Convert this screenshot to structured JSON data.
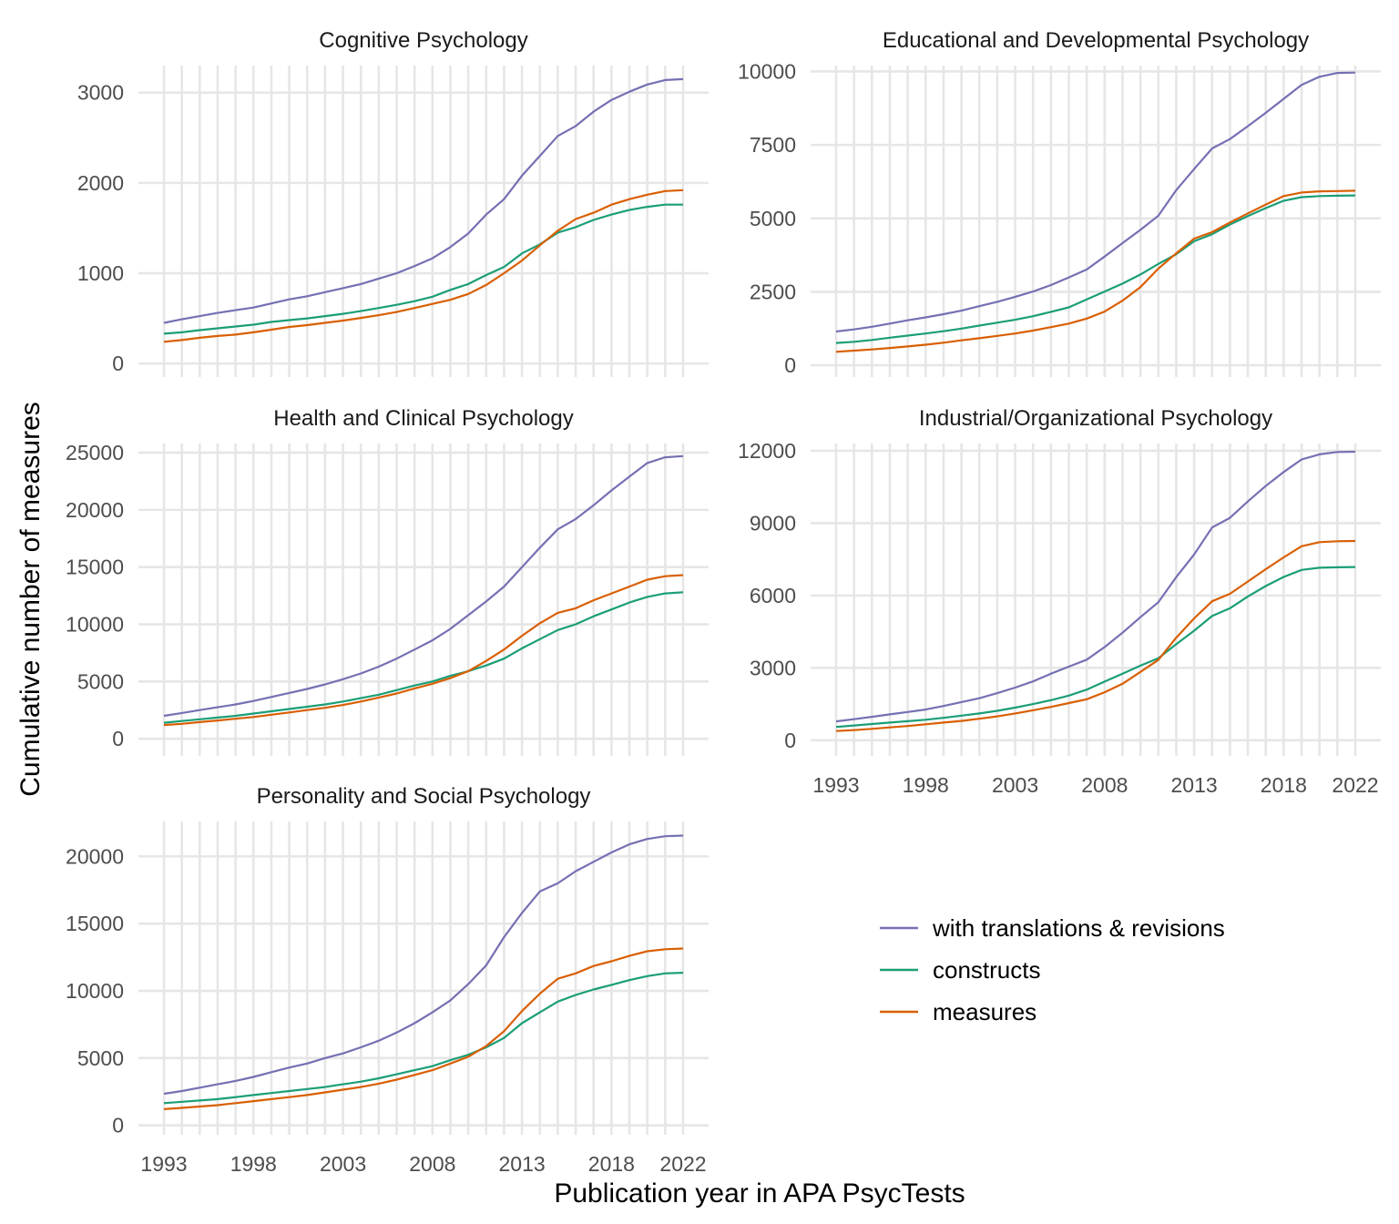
{
  "chart_data": {
    "type": "line",
    "xlabel": "Publication year in APA PsycTests",
    "ylabel": "Cumulative number of measures",
    "x_ticks": [
      1993,
      1998,
      2003,
      2008,
      2013,
      2018,
      2022
    ],
    "x": [
      1993,
      1994,
      1995,
      1996,
      1997,
      1998,
      1999,
      2000,
      2001,
      2002,
      2003,
      2004,
      2005,
      2006,
      2007,
      2008,
      2009,
      2010,
      2011,
      2012,
      2013,
      2014,
      2015,
      2016,
      2017,
      2018,
      2019,
      2020,
      2021,
      2022
    ],
    "xlim": [
      1993,
      2022
    ],
    "legend": {
      "placement": "bottom-right (empty facet slot)",
      "entries": [
        {
          "label": "with translations & revisions",
          "color": "#7570b3"
        },
        {
          "label": "constructs",
          "color": "#1b9e77"
        },
        {
          "label": "measures",
          "color": "#d95f02"
        }
      ]
    },
    "grid": true,
    "panels": [
      {
        "title": "Cognitive Psychology",
        "ylim": [
          -150,
          3300
        ],
        "y_ticks": [
          0,
          1000,
          2000,
          3000
        ],
        "show_x_labels": false,
        "series": [
          {
            "name": "with translations & revisions",
            "color": "#7570b3",
            "values": [
              450,
              490,
              525,
              560,
              590,
              620,
              665,
              710,
              745,
              790,
              835,
              880,
              940,
              1000,
              1080,
              1165,
              1290,
              1440,
              1650,
              1820,
              2080,
              2300,
              2520,
              2630,
              2790,
              2920,
              3010,
              3090,
              3140,
              3150
            ]
          },
          {
            "name": "constructs",
            "color": "#1b9e77",
            "values": [
              330,
              345,
              370,
              390,
              410,
              430,
              460,
              480,
              500,
              525,
              550,
              580,
              615,
              650,
              690,
              740,
              815,
              880,
              980,
              1070,
              1220,
              1320,
              1450,
              1510,
              1590,
              1650,
              1700,
              1735,
              1760,
              1760
            ]
          },
          {
            "name": "measures",
            "color": "#d95f02",
            "values": [
              240,
              260,
              285,
              305,
              320,
              345,
              375,
              405,
              425,
              450,
              475,
              505,
              535,
              570,
              615,
              660,
              705,
              770,
              870,
              1000,
              1140,
              1310,
              1470,
              1600,
              1670,
              1760,
              1820,
              1870,
              1910,
              1920
            ]
          }
        ]
      },
      {
        "title": "Educational and Developmental Psychology",
        "ylim": [
          -400,
          10200
        ],
        "y_ticks": [
          0,
          2500,
          5000,
          7500,
          10000
        ],
        "show_x_labels": false,
        "series": [
          {
            "name": "with translations & revisions",
            "color": "#7570b3",
            "values": [
              1150,
              1220,
              1310,
              1420,
              1530,
              1630,
              1740,
              1860,
              2010,
              2160,
              2330,
              2510,
              2730,
              2990,
              3260,
              3700,
              4160,
              4610,
              5090,
              5960,
              6680,
              7380,
              7700,
              8140,
              8590,
              9070,
              9540,
              9820,
              9950,
              9960
            ]
          },
          {
            "name": "constructs",
            "color": "#1b9e77",
            "values": [
              760,
              800,
              860,
              940,
              1010,
              1080,
              1160,
              1250,
              1350,
              1450,
              1550,
              1670,
              1820,
              1970,
              2240,
              2510,
              2780,
              3090,
              3450,
              3780,
              4220,
              4460,
              4790,
              5080,
              5350,
              5600,
              5720,
              5760,
              5770,
              5780
            ]
          },
          {
            "name": "measures",
            "color": "#d95f02",
            "values": [
              460,
              500,
              540,
              590,
              640,
              700,
              770,
              850,
              920,
              1000,
              1080,
              1180,
              1300,
              1420,
              1590,
              1830,
              2200,
              2660,
              3290,
              3810,
              4310,
              4530,
              4860,
              5170,
              5470,
              5760,
              5880,
              5920,
              5930,
              5940
            ]
          }
        ]
      },
      {
        "title": "Health and Clinical Psychology",
        "ylim": [
          -1500,
          25800
        ],
        "y_ticks": [
          0,
          5000,
          10000,
          15000,
          20000,
          25000
        ],
        "show_x_labels": false,
        "series": [
          {
            "name": "with translations & revisions",
            "color": "#7570b3",
            "values": [
              2000,
              2250,
              2500,
              2750,
              3000,
              3300,
              3650,
              4000,
              4350,
              4750,
              5200,
              5700,
              6300,
              7000,
              7800,
              8600,
              9600,
              10800,
              12000,
              13300,
              15000,
              16700,
              18300,
              19200,
              20400,
              21700,
              22900,
              24100,
              24600,
              24700
            ]
          },
          {
            "name": "constructs",
            "color": "#1b9e77",
            "values": [
              1400,
              1550,
              1700,
              1850,
              2000,
              2200,
              2400,
              2600,
              2800,
              3000,
              3250,
              3550,
              3850,
              4250,
              4650,
              5000,
              5500,
              5900,
              6400,
              7000,
              7900,
              8700,
              9500,
              10000,
              10700,
              11300,
              11900,
              12400,
              12700,
              12800
            ]
          },
          {
            "name": "measures",
            "color": "#d95f02",
            "values": [
              1200,
              1300,
              1450,
              1600,
              1750,
              1900,
              2100,
              2300,
              2500,
              2700,
              2950,
              3250,
              3600,
              3950,
              4400,
              4800,
              5300,
              5900,
              6800,
              7800,
              9000,
              10100,
              11000,
              11400,
              12100,
              12700,
              13300,
              13900,
              14200,
              14300
            ]
          }
        ]
      },
      {
        "title": "Industrial/Organizational Psychology",
        "ylim": [
          -650,
          12300
        ],
        "y_ticks": [
          0,
          3000,
          6000,
          9000,
          12000
        ],
        "show_x_labels": true,
        "series": [
          {
            "name": "with translations & revisions",
            "color": "#7570b3",
            "values": [
              780,
              870,
              970,
              1070,
              1170,
              1270,
              1420,
              1580,
              1740,
              1950,
              2180,
              2440,
              2760,
              3050,
              3340,
              3860,
              4460,
              5100,
              5720,
              6760,
              7700,
              8820,
              9220,
              9900,
              10540,
              11120,
              11640,
              11850,
              11950,
              11960
            ]
          },
          {
            "name": "constructs",
            "color": "#1b9e77",
            "values": [
              550,
              610,
              670,
              730,
              790,
              850,
              930,
              1020,
              1110,
              1220,
              1350,
              1500,
              1660,
              1850,
              2100,
              2430,
              2760,
              3090,
              3400,
              3980,
              4540,
              5150,
              5470,
              5960,
              6390,
              6770,
              7060,
              7150,
              7170,
              7180
            ]
          },
          {
            "name": "measures",
            "color": "#d95f02",
            "values": [
              380,
              420,
              470,
              530,
              590,
              660,
              730,
              800,
              890,
              990,
              1110,
              1240,
              1380,
              1540,
              1700,
              1990,
              2340,
              2830,
              3330,
              4250,
              5050,
              5760,
              6070,
              6580,
              7090,
              7580,
              8040,
              8210,
              8250,
              8260
            ]
          }
        ]
      },
      {
        "title": "Personality and Social Psychology",
        "ylim": [
          -700,
          22600
        ],
        "y_ticks": [
          0,
          5000,
          10000,
          15000,
          20000
        ],
        "show_x_labels": true,
        "series": [
          {
            "name": "with translations & revisions",
            "color": "#7570b3",
            "values": [
              2350,
              2550,
              2800,
              3050,
              3300,
              3600,
              3950,
              4300,
              4600,
              5000,
              5350,
              5800,
              6300,
              6900,
              7600,
              8400,
              9300,
              10500,
              11900,
              14000,
              15800,
              17400,
              18000,
              18900,
              19600,
              20300,
              20900,
              21300,
              21500,
              21550
            ]
          },
          {
            "name": "constructs",
            "color": "#1b9e77",
            "values": [
              1650,
              1750,
              1850,
              1950,
              2100,
              2250,
              2400,
              2550,
              2700,
              2850,
              3050,
              3250,
              3500,
              3800,
              4100,
              4400,
              4850,
              5250,
              5800,
              6500,
              7600,
              8400,
              9200,
              9700,
              10100,
              10450,
              10800,
              11100,
              11300,
              11350
            ]
          },
          {
            "name": "measures",
            "color": "#d95f02",
            "values": [
              1200,
              1300,
              1400,
              1500,
              1650,
              1800,
              1950,
              2100,
              2250,
              2450,
              2650,
              2850,
              3100,
              3400,
              3750,
              4100,
              4600,
              5100,
              5900,
              7000,
              8500,
              9800,
              10900,
              11300,
              11850,
              12200,
              12600,
              12950,
              13100,
              13150
            ]
          }
        ]
      }
    ]
  }
}
